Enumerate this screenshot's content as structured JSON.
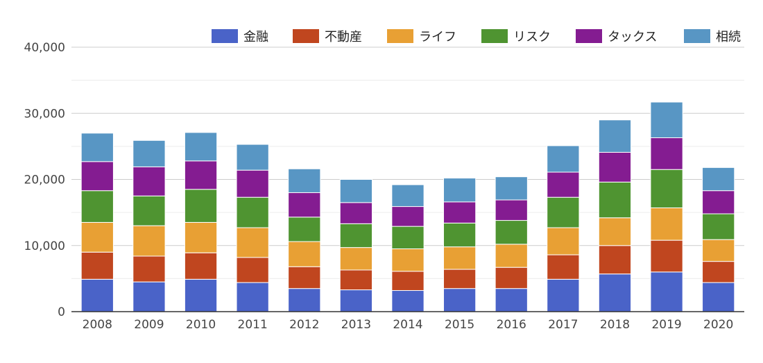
{
  "chart_data": {
    "type": "bar",
    "stacked": true,
    "categories": [
      "2008",
      "2009",
      "2010",
      "2011",
      "2012",
      "2013",
      "2014",
      "2015",
      "2016",
      "2017",
      "2018",
      "2019",
      "2020"
    ],
    "series": [
      {
        "name": "金融",
        "color": "#4a63c8",
        "values": [
          4900,
          4500,
          4900,
          4400,
          3500,
          3300,
          3200,
          3500,
          3500,
          4900,
          5700,
          6000,
          4400
        ]
      },
      {
        "name": "不動産",
        "color": "#c0461f",
        "values": [
          4100,
          3900,
          4000,
          3800,
          3300,
          3000,
          2900,
          2900,
          3200,
          3700,
          4300,
          4800,
          3200
        ]
      },
      {
        "name": "ライフ",
        "color": "#e8a034",
        "values": [
          4500,
          4600,
          4600,
          4500,
          3800,
          3400,
          3400,
          3400,
          3500,
          4100,
          4200,
          4900,
          3300
        ]
      },
      {
        "name": "リスク",
        "color": "#4f9431",
        "values": [
          4800,
          4500,
          5000,
          4600,
          3700,
          3600,
          3400,
          3600,
          3600,
          4600,
          5400,
          5800,
          3900
        ]
      },
      {
        "name": "タックス",
        "color": "#841c91",
        "values": [
          4400,
          4400,
          4300,
          4100,
          3700,
          3200,
          3000,
          3200,
          3100,
          3800,
          4500,
          4800,
          3500
        ]
      },
      {
        "name": "相続",
        "color": "#5896c4",
        "values": [
          4300,
          4000,
          4300,
          3900,
          3600,
          3500,
          3300,
          3600,
          3500,
          4000,
          4900,
          5400,
          3500
        ]
      }
    ],
    "ylim": [
      0,
      40000
    ],
    "yticks": [
      0,
      10000,
      20000,
      30000,
      40000
    ],
    "ytick_labels": [
      "0",
      "10,000",
      "20,000",
      "30,000",
      "40,000"
    ],
    "grid": true,
    "legend_position": "top-right",
    "title": "",
    "xlabel": "",
    "ylabel": ""
  }
}
